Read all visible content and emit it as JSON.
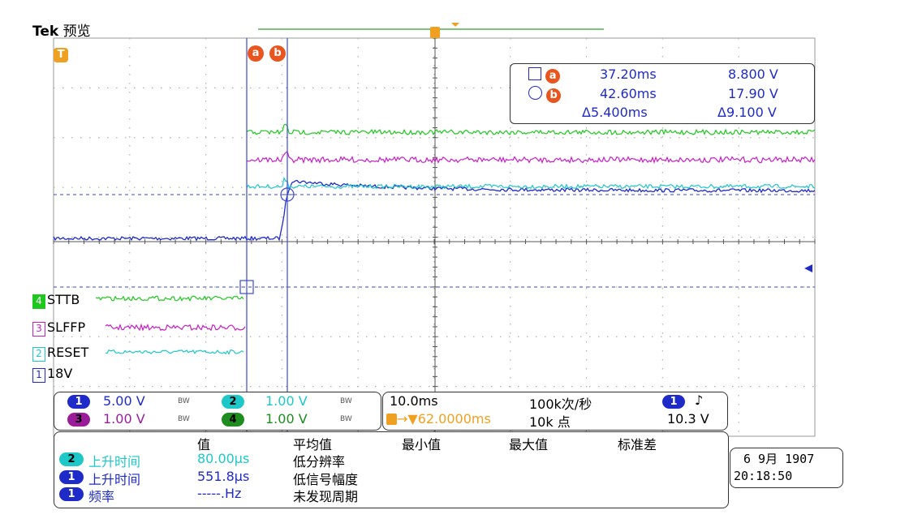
{
  "header": {
    "brand": "Tek",
    "mode": "预览"
  },
  "markers": {
    "trigger": "T",
    "cursor_a": "a",
    "cursor_b": "b"
  },
  "cursor_readout": {
    "a": {
      "time": "37.20ms",
      "volt": "8.800 V"
    },
    "b": {
      "time": "42.60ms",
      "volt": "17.90 V"
    },
    "delta": {
      "time": "Δ5.400ms",
      "volt": "Δ9.100 V"
    }
  },
  "channel_labels": [
    {
      "num": "4",
      "name": "STTB",
      "color": "#1ec81e"
    },
    {
      "num": "3",
      "name": "SLFFP",
      "color": "#c81ec8"
    },
    {
      "num": "2",
      "name": "RESET",
      "color": "#1ec8c8"
    },
    {
      "num": "1",
      "name": "18V",
      "color": "#1f2bc8"
    }
  ],
  "channel_settings": {
    "ch1": {
      "num": "1",
      "scale": "5.00 V",
      "bw": "BW"
    },
    "ch2": {
      "num": "2",
      "scale": "1.00 V",
      "bw": "BW"
    },
    "ch3": {
      "num": "3",
      "scale": "1.00 V",
      "bw": "BW"
    },
    "ch4": {
      "num": "4",
      "scale": "1.00 V",
      "bw": "BW"
    }
  },
  "horizontal": {
    "timebase": "10.0ms",
    "sample_rate": "100k次/秒",
    "trigger_pos": "→▼62.0000ms",
    "record_length": "10k 点",
    "trigger_ch": "1",
    "trigger_slope": "♪",
    "trigger_level": "10.3 V"
  },
  "measurements": {
    "headers": [
      "值",
      "平均值",
      "最小值",
      "最大值",
      "标准差"
    ],
    "rows": [
      {
        "ch": "2",
        "name": "上升时间",
        "value": "80.00µs",
        "note": "低分辨率"
      },
      {
        "ch": "1",
        "name": "上升时间",
        "value": "551.8µs",
        "note": "低信号幅度"
      },
      {
        "ch": "1",
        "name": "频率",
        "value": "-----.Hz",
        "note": "未发现周期"
      }
    ]
  },
  "datetime": {
    "date": "6 9月  1907",
    "time": "20:18:50"
  },
  "colors": {
    "ch1": "#1f2bc8",
    "ch2": "#1ec8c8",
    "ch3": "#c81ec8",
    "ch4": "#1ec81e",
    "trigger": "#f0a020",
    "cursor": "#3c4ad2",
    "accent": "#e8551e"
  }
}
